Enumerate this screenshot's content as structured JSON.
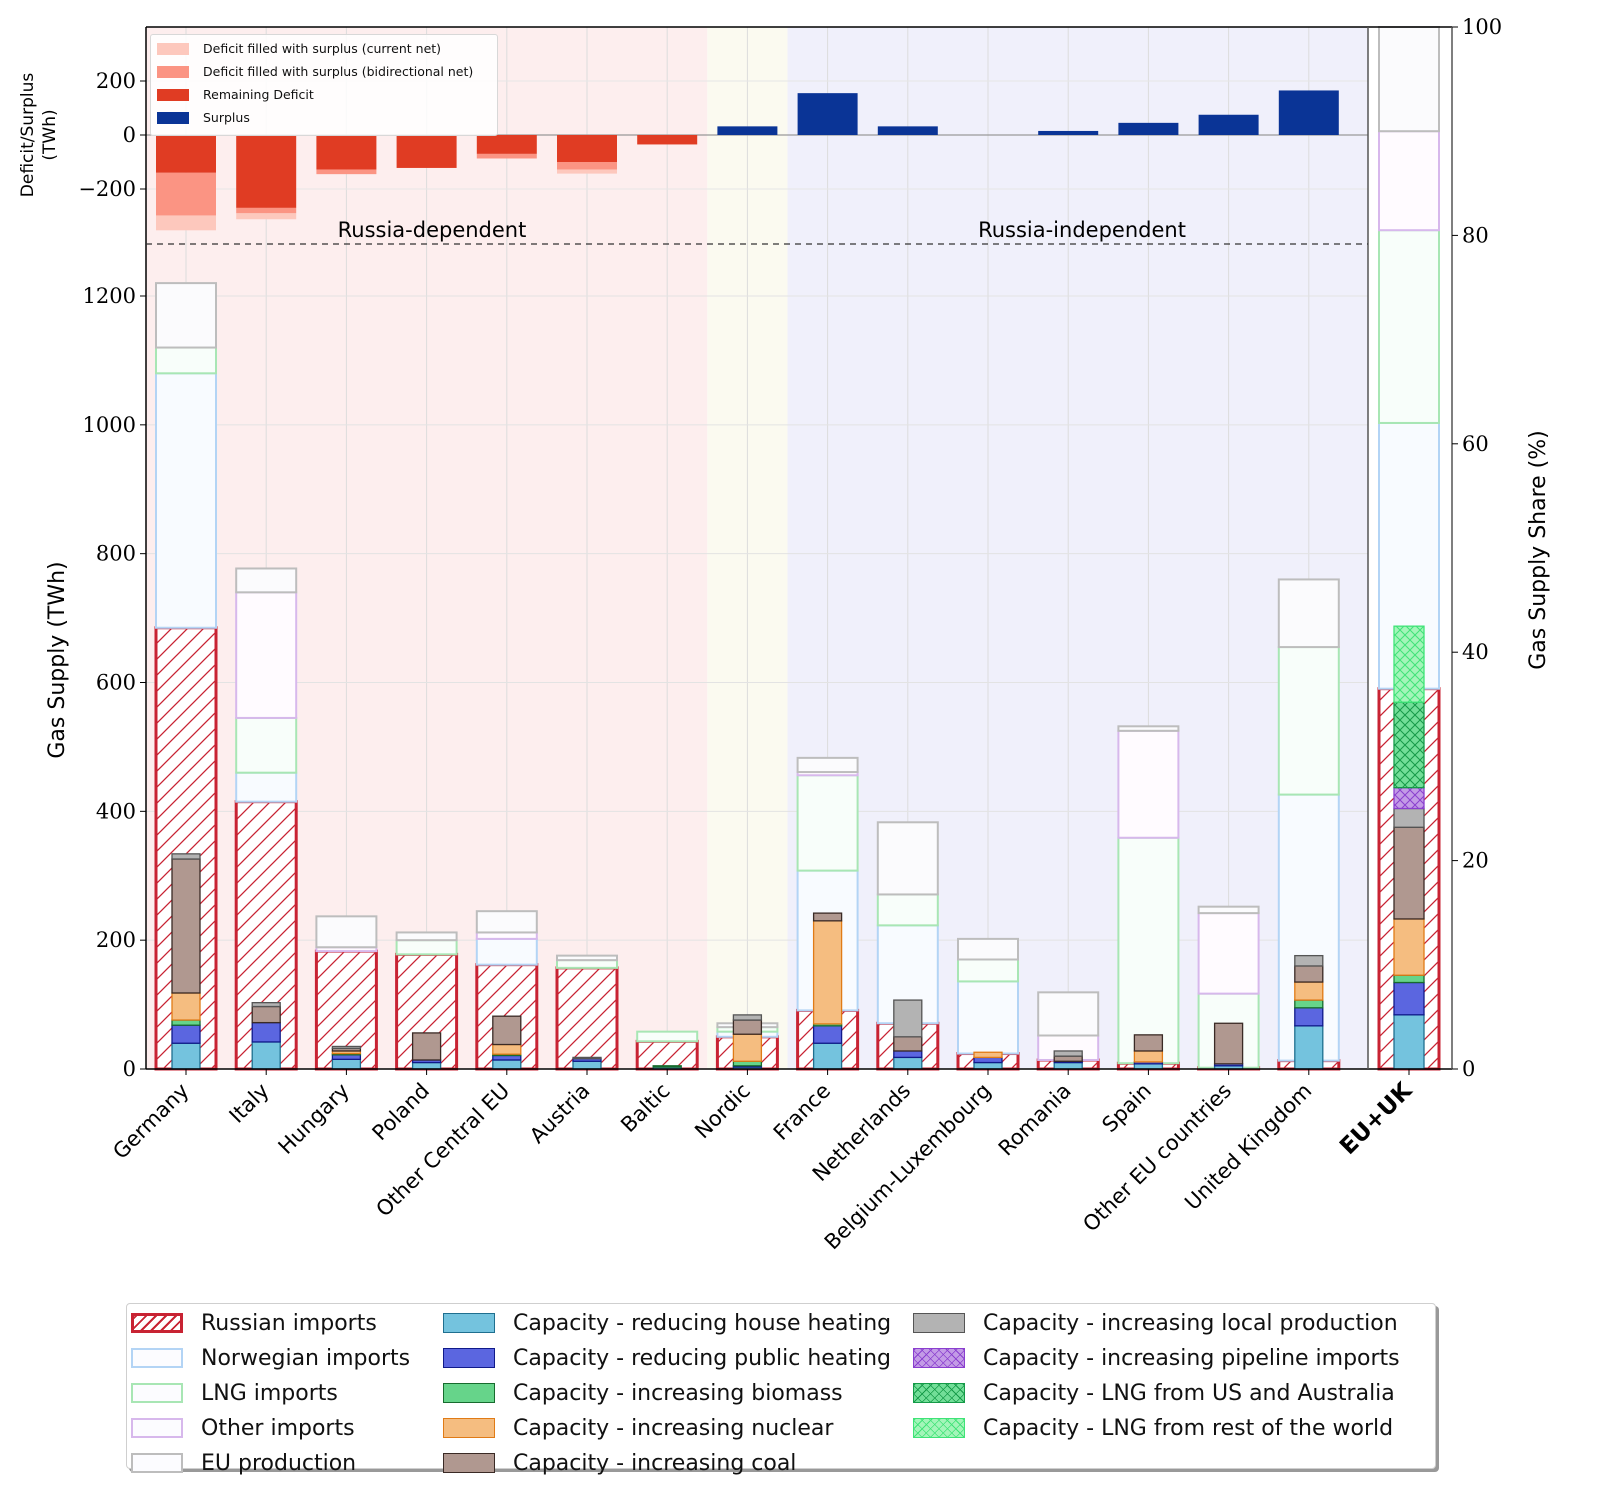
{
  "chart_data": {
    "type": "bar",
    "subtype": "stacked-bar-with-overlay",
    "categories": [
      "Germany",
      "Italy",
      "Hungary",
      "Poland",
      "Other Central EU",
      "Austria",
      "Baltic",
      "Nordic",
      "France",
      "Netherlands",
      "Belgium-Luxembourg",
      "Romania",
      "Spain",
      "Other EU countries",
      "United Kingdom"
    ],
    "aggregate_category": "EU+UK",
    "groups": [
      {
        "label": "Russia-dependent",
        "categories": [
          "Germany",
          "Italy",
          "Hungary",
          "Poland",
          "Other Central EU",
          "Austria",
          "Baltic"
        ],
        "color": "#fdeeee"
      },
      {
        "label": "",
        "categories": [
          "Nordic"
        ],
        "color": "#fbfaf0"
      },
      {
        "label": "Russia-independent",
        "categories": [
          "France",
          "Netherlands",
          "Belgium-Luxembourg",
          "Romania",
          "Spain",
          "Other EU countries",
          "United Kingdom"
        ],
        "color": "#f0f0fb"
      }
    ],
    "top_panel": {
      "ylabel": "Deficit/Surplus\n(TWh)",
      "ylim": [
        -420,
        400
      ],
      "yticks": [
        -200,
        0,
        200
      ],
      "series": [
        {
          "name": "Remaining Deficit",
          "color": "#e03c23",
          "values": [
            -140,
            -270,
            -128,
            -122,
            -70,
            -100,
            -35,
            0,
            0,
            0,
            0,
            0,
            0,
            0,
            0
          ]
        },
        {
          "name": "Deficit filled with surplus (bidirectional net)",
          "color": "#fb9483",
          "values": [
            -158,
            -20,
            -17,
            0,
            -17,
            -28,
            0,
            0,
            0,
            0,
            0,
            0,
            0,
            0,
            0
          ]
        },
        {
          "name": "Deficit filled with surplus (current net)",
          "color": "#fdc8bd",
          "values": [
            -55,
            -22,
            0,
            0,
            0,
            -15,
            0,
            0,
            0,
            0,
            0,
            0,
            0,
            0,
            0
          ]
        },
        {
          "name": "Surplus",
          "color": "#0a3496",
          "values": [
            0,
            0,
            0,
            0,
            0,
            0,
            0,
            32,
            155,
            32,
            0,
            15,
            45,
            75,
            165
          ]
        }
      ]
    },
    "main_panel": {
      "ylabel": "Gas Supply (TWh)",
      "ylim": [
        0,
        1300
      ],
      "yticks": [
        0,
        200,
        400,
        600,
        800,
        1000,
        1200
      ],
      "supply_stack": [
        {
          "name": "Russian imports",
          "edge": "#c82333",
          "values": [
            685,
            415,
            183,
            178,
            162,
            157,
            43,
            50,
            91,
            71,
            24,
            14,
            9,
            2,
            13
          ]
        },
        {
          "name": "Norwegian imports",
          "edge": "#b3d4f5",
          "values": [
            395,
            45,
            0,
            0,
            40,
            0,
            0,
            8,
            217,
            152,
            112,
            0,
            0,
            0,
            413
          ]
        },
        {
          "name": "LNG imports",
          "edge": "#a8e6b4",
          "values": [
            40,
            85,
            0,
            22,
            0,
            12,
            15,
            7,
            148,
            48,
            34,
            0,
            350,
            115,
            229
          ]
        },
        {
          "name": "Other imports",
          "edge": "#d7b8ec",
          "values": [
            0,
            195,
            6,
            0,
            10,
            0,
            0,
            0,
            5,
            0,
            0,
            38,
            166,
            125,
            0
          ]
        },
        {
          "name": "EU production",
          "edge": "#bdbdbd",
          "values": [
            100,
            37,
            48,
            12,
            33,
            7,
            0,
            6,
            22,
            112,
            32,
            67,
            7,
            10,
            105
          ]
        }
      ],
      "capacity_stack": [
        {
          "name": "Capacity - reducing house heating",
          "color": "#74c3de",
          "values": [
            40,
            42,
            15,
            10,
            14,
            12,
            3,
            3,
            40,
            18,
            10,
            10,
            8,
            5,
            67
          ]
        },
        {
          "name": "Capacity - reducing public heating",
          "color": "#5b66e0",
          "values": [
            28,
            30,
            7,
            4,
            7,
            4,
            0,
            2,
            27,
            10,
            8,
            2,
            3,
            3,
            28
          ]
        },
        {
          "name": "Capacity - increasing biomass",
          "color": "#66d48a",
          "values": [
            8,
            0,
            2,
            0,
            2,
            0,
            2,
            7,
            3,
            0,
            0,
            0,
            0,
            0,
            12
          ]
        },
        {
          "name": "Capacity - increasing nuclear",
          "color": "#f5bd80",
          "values": [
            42,
            0,
            4,
            0,
            15,
            0,
            0,
            42,
            160,
            0,
            8,
            0,
            17,
            0,
            28
          ]
        },
        {
          "name": "Capacity - increasing coal",
          "color": "#b09890",
          "values": [
            208,
            25,
            4,
            42,
            44,
            0,
            0,
            22,
            12,
            22,
            0,
            8,
            25,
            63,
            25
          ]
        },
        {
          "name": "Capacity - increasing local production",
          "color": "#b3b3b3",
          "values": [
            8,
            6,
            3,
            0,
            0,
            2,
            0,
            8,
            0,
            57,
            0,
            8,
            0,
            0,
            16
          ]
        }
      ]
    },
    "share_panel": {
      "category": "EU+UK",
      "ylabel": "Gas Supply Share (%)",
      "ylim": [
        0,
        100
      ],
      "yticks": [
        0,
        20,
        40,
        60,
        80,
        100
      ],
      "supply_stack": [
        {
          "name": "Russian imports",
          "value": 36.5
        },
        {
          "name": "Norwegian imports",
          "value": 25.5
        },
        {
          "name": "LNG imports",
          "value": 18.5
        },
        {
          "name": "Other imports",
          "value": 9.5
        },
        {
          "name": "EU production",
          "value": 10.0
        }
      ],
      "capacity_stack": [
        {
          "name": "Capacity - reducing house heating",
          "value": 5.2
        },
        {
          "name": "Capacity - reducing public heating",
          "value": 3.1
        },
        {
          "name": "Capacity - increasing biomass",
          "value": 0.7
        },
        {
          "name": "Capacity - increasing nuclear",
          "value": 5.4
        },
        {
          "name": "Capacity - increasing coal",
          "value": 8.8
        },
        {
          "name": "Capacity - increasing local production",
          "value": 1.8
        },
        {
          "name": "Capacity - increasing pipeline imports",
          "value": 2.0
        },
        {
          "name": "Capacity - LNG from US and Australia",
          "value": 8.2
        },
        {
          "name": "Capacity - LNG from rest of the world",
          "value": 7.3
        }
      ]
    },
    "top_legend": [
      {
        "label": "Deficit filled with surplus (current net)",
        "color": "#fdc8bd"
      },
      {
        "label": "Deficit filled with surplus (bidirectional net)",
        "color": "#fb9483"
      },
      {
        "label": "Remaining Deficit",
        "color": "#e03c23"
      },
      {
        "label": "Surplus",
        "color": "#0a3496"
      }
    ],
    "legend": [
      {
        "label": "Russian imports",
        "kind": "hatch-red"
      },
      {
        "label": "Norwegian imports",
        "kind": "outline",
        "color": "#b3d4f5"
      },
      {
        "label": "LNG imports",
        "kind": "outline",
        "color": "#a8e6b4"
      },
      {
        "label": "Other imports",
        "kind": "outline",
        "color": "#d7b8ec"
      },
      {
        "label": "EU production",
        "kind": "outline",
        "color": "#bdbdbd"
      },
      {
        "label": "Capacity - reducing house heating",
        "kind": "fill",
        "color": "#74c3de",
        "edge": "#1f6f8f"
      },
      {
        "label": "Capacity - reducing public heating",
        "kind": "fill",
        "color": "#5b66e0",
        "edge": "#101a8a"
      },
      {
        "label": "Capacity - increasing biomass",
        "kind": "fill",
        "color": "#66d48a",
        "edge": "#176b2e"
      },
      {
        "label": "Capacity - increasing nuclear",
        "kind": "fill",
        "color": "#f5bd80",
        "edge": "#e07b16"
      },
      {
        "label": "Capacity - increasing coal",
        "kind": "fill",
        "color": "#b09890",
        "edge": "#3a2a25"
      },
      {
        "label": "Capacity - increasing local production",
        "kind": "fill",
        "color": "#b3b3b3",
        "edge": "#555555"
      },
      {
        "label": "Capacity - increasing pipeline imports",
        "kind": "xhatch",
        "color": "#c39be6",
        "edge": "#8a3fcf"
      },
      {
        "label": "Capacity - LNG from US and Australia",
        "kind": "xhatch",
        "color": "#72de98",
        "edge": "#159a48"
      },
      {
        "label": "Capacity - LNG from rest of the world",
        "kind": "xhatch",
        "color": "#a3f5b9",
        "edge": "#3fe377"
      }
    ]
  }
}
